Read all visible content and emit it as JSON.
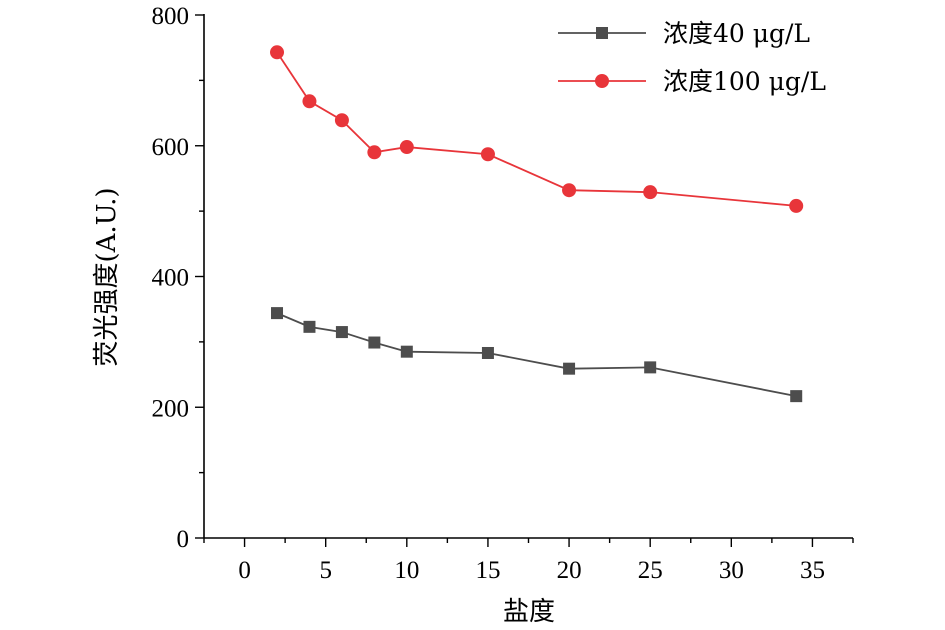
{
  "chart_data": {
    "type": "line",
    "xlabel": "盐度",
    "ylabel": "荧光强度(A.U.)",
    "xlim": [
      -2.5,
      37.5
    ],
    "ylim": [
      0,
      800
    ],
    "xticks": [
      0,
      5,
      10,
      15,
      20,
      25,
      30,
      35
    ],
    "yticks": [
      0,
      200,
      400,
      600,
      800
    ],
    "x": [
      2,
      4,
      6,
      8,
      10,
      15,
      20,
      25,
      34
    ],
    "series": [
      {
        "name": "浓度40 μg/L",
        "color": "#4d4d4d",
        "marker": "square",
        "values": [
          344,
          323,
          315,
          299,
          285,
          283,
          259,
          261,
          217
        ]
      },
      {
        "name": "浓度100 μg/L",
        "color": "#e8353a",
        "marker": "circle",
        "values": [
          743,
          668,
          639,
          590,
          598,
          587,
          532,
          529,
          508
        ]
      }
    ],
    "grid": false,
    "legend_position": "top-right"
  }
}
